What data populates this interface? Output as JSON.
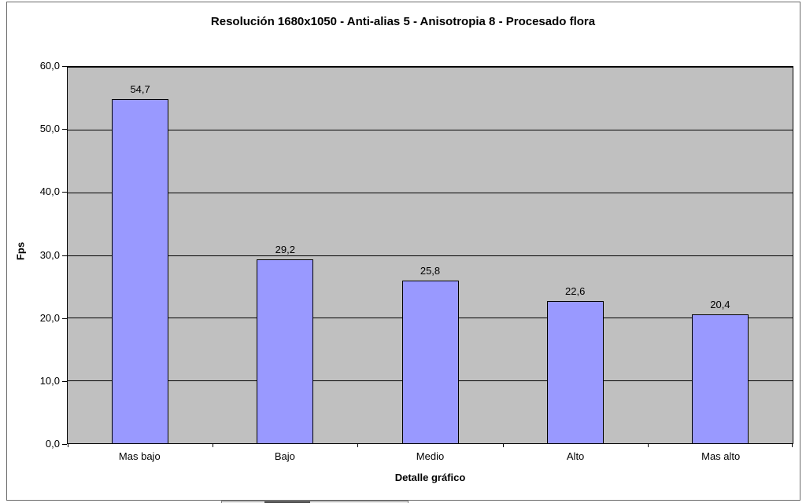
{
  "chart_data": {
    "type": "bar",
    "title": "Resolución 1680x1050 - Anti-alias 5 - Anisotropia 8 - Procesado flora",
    "xlabel": "Detalle gráfico",
    "ylabel": "Fps",
    "categories": [
      "Mas bajo",
      "Bajo",
      "Medio",
      "Alto",
      "Mas alto"
    ],
    "values": [
      54.7,
      29.2,
      25.8,
      22.6,
      20.4
    ],
    "value_labels": [
      "54,7",
      "29,2",
      "25,8",
      "22,6",
      "20,4"
    ],
    "ylim": [
      0,
      60
    ],
    "y_tick_step": 10,
    "y_tick_labels": [
      "0,0",
      "10,0",
      "20,0",
      "30,0",
      "40,0",
      "50,0",
      "60,0"
    ],
    "grid": true,
    "legend_position": "none",
    "colors": {
      "bar_fill": "#9999FF",
      "bar_border": "#000000",
      "plot_bg": "#C0C0C0",
      "grid_line": "#000000",
      "chart_bg": "#FFFFFF"
    }
  }
}
